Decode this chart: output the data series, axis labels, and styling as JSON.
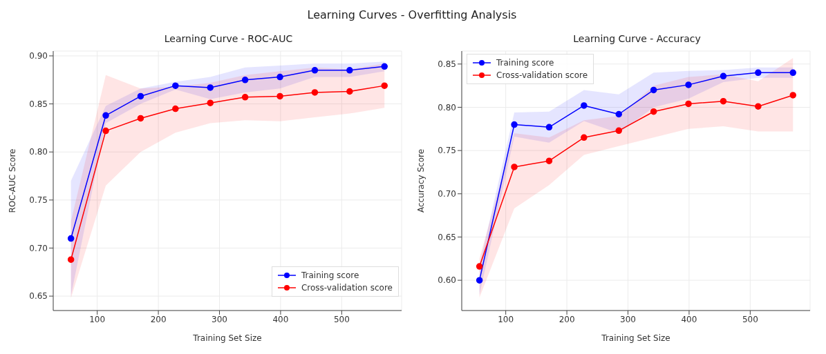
{
  "chart_data": [
    {
      "type": "other",
      "title": "Learning Curves - Overfitting Analysis"
    },
    {
      "type": "line",
      "title": "Learning Curve - ROC-AUC",
      "xlabel": "Training Set Size",
      "ylabel": "ROC-AUC Score",
      "x": [
        57,
        114,
        171,
        228,
        285,
        342,
        399,
        456,
        513,
        570
      ],
      "xlim": [
        28,
        598
      ],
      "xticks": [
        100,
        200,
        300,
        400,
        500
      ],
      "ylim": [
        0.635,
        0.905
      ],
      "yticks": [
        0.65,
        {
          "value": 0.7,
          "label": "0.70"
        },
        0.75,
        {
          "value": 0.8,
          "label": "0.80"
        },
        0.85,
        {
          "value": 0.9,
          "label": "0.90"
        }
      ],
      "grid": true,
      "legend": "bottom right",
      "marker": "circle",
      "series": [
        {
          "name": "Training score",
          "color": "#0000ff",
          "values": [
            0.71,
            0.838,
            0.858,
            0.869,
            0.867,
            0.875,
            0.878,
            0.885,
            0.885,
            0.889
          ],
          "lower": [
            0.65,
            0.83,
            0.85,
            0.865,
            0.855,
            0.862,
            0.866,
            0.878,
            0.878,
            0.884
          ],
          "upper": [
            0.77,
            0.848,
            0.866,
            0.873,
            0.878,
            0.888,
            0.89,
            0.892,
            0.892,
            0.894
          ]
        },
        {
          "name": "Cross-validation score",
          "color": "#ff0000",
          "values": [
            0.688,
            0.822,
            0.835,
            0.845,
            0.851,
            0.857,
            0.858,
            0.862,
            0.863,
            0.869
          ],
          "lower": [
            0.648,
            0.765,
            0.8,
            0.82,
            0.83,
            0.833,
            0.832,
            0.836,
            0.84,
            0.846
          ],
          "upper": [
            0.728,
            0.88,
            0.866,
            0.868,
            0.872,
            0.88,
            0.884,
            0.888,
            0.886,
            0.892
          ]
        }
      ]
    },
    {
      "type": "line",
      "title": "Learning Curve - Accuracy",
      "xlabel": "Training Set Size",
      "ylabel": "Accuracy Score",
      "x": [
        57,
        114,
        171,
        228,
        285,
        342,
        399,
        456,
        513,
        570
      ],
      "xlim": [
        28,
        598
      ],
      "xticks": [
        100,
        200,
        300,
        400,
        500
      ],
      "ylim": [
        0.565,
        0.865
      ],
      "yticks": [
        {
          "value": 0.6,
          "label": "0.60"
        },
        0.65,
        {
          "value": 0.7,
          "label": "0.70"
        },
        0.75,
        {
          "value": 0.8,
          "label": "0.80"
        },
        0.85
      ],
      "grid": true,
      "legend": "top left",
      "marker": "circle",
      "series": [
        {
          "name": "Training score",
          "color": "#0000ff",
          "values": [
            0.6,
            0.78,
            0.777,
            0.802,
            0.792,
            0.82,
            0.826,
            0.836,
            0.84,
            0.84
          ],
          "lower": [
            0.583,
            0.766,
            0.759,
            0.784,
            0.77,
            0.8,
            0.81,
            0.829,
            0.834,
            0.834
          ],
          "upper": [
            0.617,
            0.794,
            0.795,
            0.82,
            0.815,
            0.84,
            0.842,
            0.843,
            0.846,
            0.846
          ]
        },
        {
          "name": "Cross-validation score",
          "color": "#ff0000",
          "values": [
            0.616,
            0.731,
            0.738,
            0.765,
            0.773,
            0.795,
            0.804,
            0.807,
            0.801,
            0.814
          ],
          "lower": [
            0.58,
            0.683,
            0.71,
            0.745,
            0.755,
            0.765,
            0.775,
            0.778,
            0.772,
            0.772
          ],
          "upper": [
            0.625,
            0.77,
            0.765,
            0.785,
            0.79,
            0.825,
            0.835,
            0.838,
            0.83,
            0.857
          ]
        }
      ]
    }
  ]
}
